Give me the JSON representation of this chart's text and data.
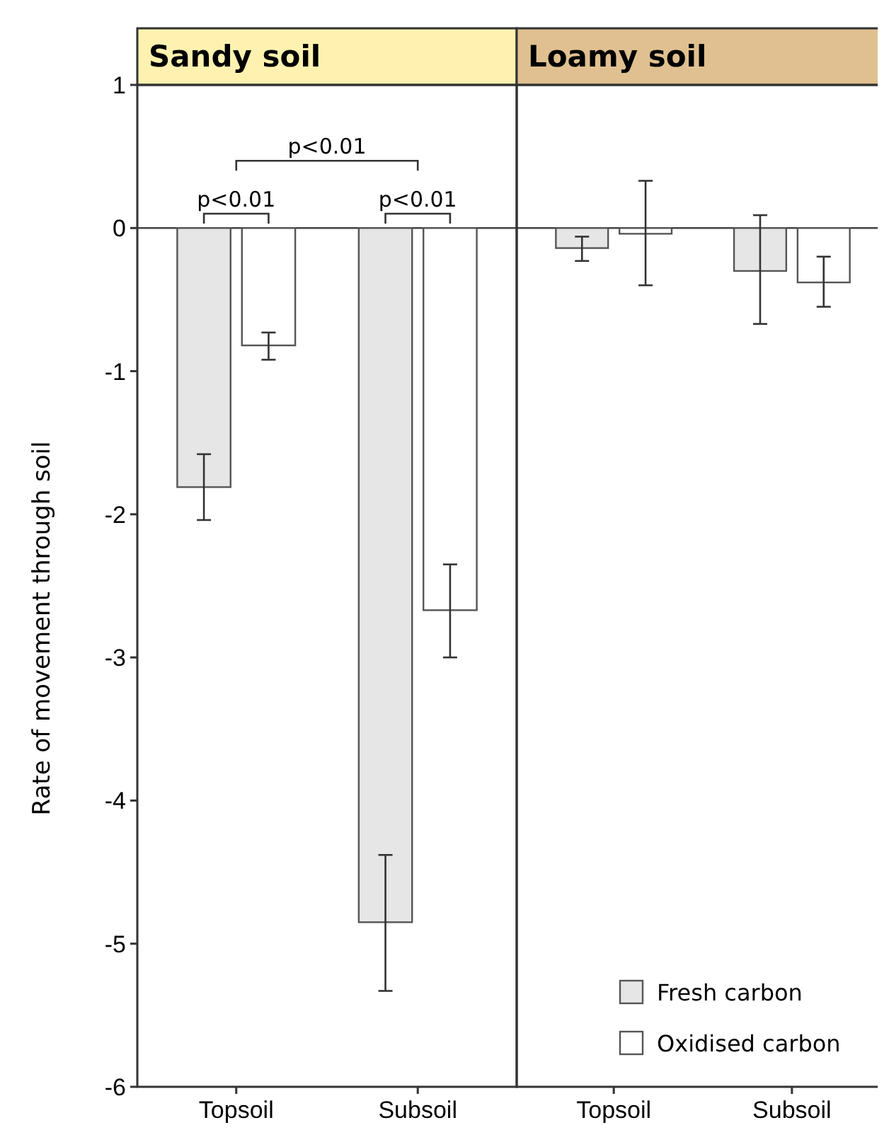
{
  "chart_data": [
    {
      "type": "bar",
      "title": "Sandy soil",
      "ylabel": "Rate of movement through soil",
      "categories": [
        "Topsoil",
        "Subsoil"
      ],
      "ylim": [
        -6,
        1
      ],
      "yticks": [
        -6,
        -5,
        -4,
        -3,
        -2,
        -1,
        0,
        1
      ],
      "legend": false,
      "series": [
        {
          "color": "#e6e6e6",
          "values": [
            -1.81,
            -4.85
          ],
          "errors": [
            [
              -2.04,
              -1.58
            ],
            [
              -5.33,
              -4.38
            ]
          ]
        },
        {
          "color": "#ffffff",
          "values": [
            -0.82,
            -2.67
          ],
          "errors": [
            [
              -0.92,
              -0.73
            ],
            [
              -3.0,
              -2.35
            ]
          ]
        }
      ],
      "annotations": [
        "p<0.01",
        "p<0.01",
        "p<0.01"
      ]
    },
    {
      "type": "bar",
      "title": "Loamy soil",
      "categories": [
        "Topsoil",
        "Subsoil"
      ],
      "ylim": [
        -6,
        1
      ],
      "yticks": [
        -6,
        -5,
        -4,
        -3,
        -2,
        -1,
        0,
        1
      ],
      "tick_labels": "x",
      "legend": "bottom right",
      "series": [
        {
          "name": "Fresh carbon",
          "color": "#e6e6e6",
          "values": [
            -0.14,
            -0.3
          ],
          "errors": [
            [
              -0.23,
              -0.06
            ],
            [
              -0.67,
              0.09
            ]
          ]
        },
        {
          "name": "Oxidised carbon",
          "color": "#ffffff",
          "values": [
            -0.04,
            -0.38
          ],
          "errors": [
            [
              -0.4,
              0.33
            ],
            [
              -0.55,
              -0.2
            ]
          ]
        }
      ]
    }
  ]
}
